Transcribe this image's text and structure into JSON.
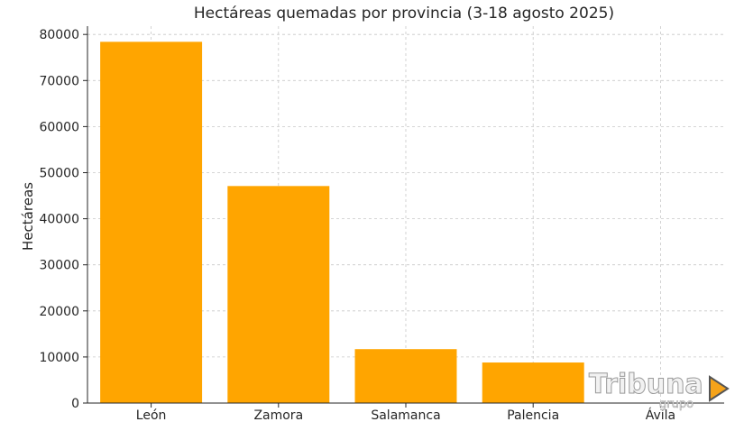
{
  "chart_data": {
    "type": "bar",
    "title": "Hectáreas quemadas por provincia (3-18 agosto 2025)",
    "xlabel": "",
    "ylabel": "Hectáreas",
    "categories": [
      "León",
      "Zamora",
      "Salamanca",
      "Palencia",
      "Ávila"
    ],
    "values": [
      78400,
      47100,
      11700,
      8800,
      0
    ],
    "ylim": [
      0,
      80000
    ],
    "yticks": [
      0,
      10000,
      20000,
      30000,
      40000,
      50000,
      60000,
      70000,
      80000
    ],
    "grid": true,
    "bar_color": "#FFA500"
  },
  "watermark": {
    "brand": "Tribuna",
    "sub": "grupo",
    "icon": "play-icon",
    "icon_color": "#F5A31A"
  }
}
